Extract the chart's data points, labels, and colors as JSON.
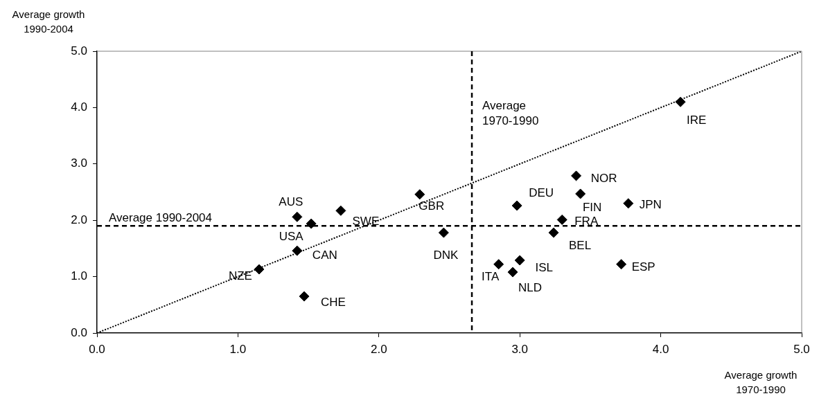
{
  "chart_data": {
    "type": "scatter",
    "xlabel": "Average growth 1970-1990",
    "ylabel": "Average growth 1990-2004",
    "xlim": [
      0,
      5
    ],
    "ylim": [
      0,
      5
    ],
    "xticks": [
      {
        "value": 0,
        "label": "0.0"
      },
      {
        "value": 1,
        "label": "1.0"
      },
      {
        "value": 2,
        "label": "2.0"
      },
      {
        "value": 3,
        "label": "3.0"
      },
      {
        "value": 4,
        "label": "4.0"
      },
      {
        "value": 5,
        "label": "5.0"
      }
    ],
    "yticks": [
      {
        "value": 0,
        "label": "0.0"
      },
      {
        "value": 1,
        "label": "1.0"
      },
      {
        "value": 2,
        "label": "2.0"
      },
      {
        "value": 3,
        "label": "3.0"
      },
      {
        "value": 4,
        "label": "4.0"
      },
      {
        "value": 5,
        "label": "5.0"
      }
    ],
    "grid": false,
    "legend": false,
    "series": [
      {
        "type": "line",
        "color": "#000000",
        "line_style": "dotted",
        "marker": "none",
        "x": [
          0,
          5
        ],
        "values": [
          0,
          5
        ]
      },
      {
        "type": "scatter",
        "color": "#000000",
        "marker": "diamond",
        "x": [
          1.42,
          1.52,
          1.73,
          1.42,
          1.15,
          1.47,
          2.29,
          2.46,
          2.98,
          3.4,
          3.43,
          3.77,
          3.3,
          3.24,
          2.85,
          3.0,
          2.95,
          3.72,
          4.14
        ],
        "values": [
          2.06,
          1.94,
          2.17,
          1.46,
          1.13,
          0.65,
          2.46,
          1.78,
          2.26,
          2.79,
          2.47,
          2.3,
          2.01,
          1.78,
          1.22,
          1.29,
          1.08,
          1.22,
          4.1
        ]
      }
    ],
    "ref_lines": [
      {
        "axis": "y",
        "value": 1.9,
        "label": "Average 1990-2004",
        "color": "#000000",
        "line_style": "dashed"
      },
      {
        "axis": "x",
        "value": 2.66,
        "label": "Average 1970-1990",
        "color": "#000000",
        "line_style": "dashed"
      }
    ],
    "annotations": [
      {
        "text": "AUS",
        "x": 1.42,
        "y": 2.06
      },
      {
        "text": "USA",
        "x": 1.52,
        "y": 1.94
      },
      {
        "text": "SWE",
        "x": 1.73,
        "y": 2.17
      },
      {
        "text": "CAN",
        "x": 1.42,
        "y": 1.46
      },
      {
        "text": "NZE",
        "x": 1.15,
        "y": 1.13
      },
      {
        "text": "CHE",
        "x": 1.47,
        "y": 0.65
      },
      {
        "text": "GBR",
        "x": 2.29,
        "y": 2.46
      },
      {
        "text": "DNK",
        "x": 2.46,
        "y": 1.78
      },
      {
        "text": "DEU",
        "x": 2.98,
        "y": 2.26
      },
      {
        "text": "NOR",
        "x": 3.4,
        "y": 2.79
      },
      {
        "text": "FIN",
        "x": 3.43,
        "y": 2.47
      },
      {
        "text": "JPN",
        "x": 3.77,
        "y": 2.3
      },
      {
        "text": "FRA",
        "x": 3.3,
        "y": 2.01
      },
      {
        "text": "BEL",
        "x": 3.24,
        "y": 1.78
      },
      {
        "text": "ITA",
        "x": 2.85,
        "y": 1.22
      },
      {
        "text": "ISL",
        "x": 3.0,
        "y": 1.29
      },
      {
        "text": "NLD",
        "x": 2.95,
        "y": 1.08
      },
      {
        "text": "ESP",
        "x": 3.72,
        "y": 1.22
      },
      {
        "text": "IRE",
        "x": 4.14,
        "y": 4.1
      }
    ]
  }
}
